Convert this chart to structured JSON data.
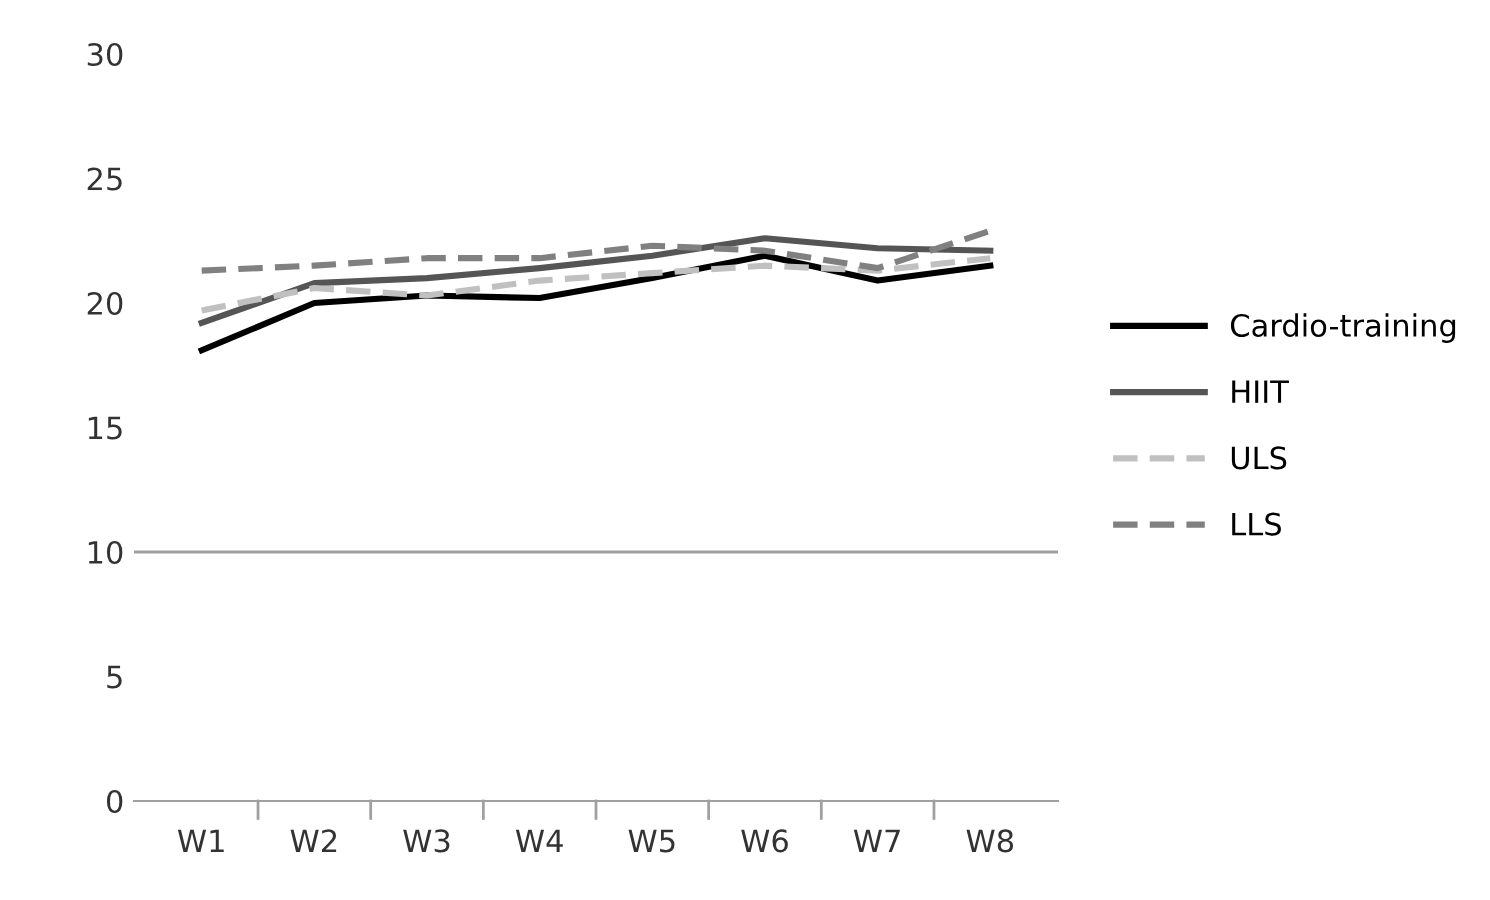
{
  "chart_data": {
    "type": "line",
    "categories": [
      "W1",
      "W2",
      "W3",
      "W4",
      "W5",
      "W6",
      "W7",
      "W8"
    ],
    "series": [
      {
        "name": "Cardio-training",
        "color": "#000000",
        "line_style": "solid",
        "values": [
          18.1,
          20.0,
          20.3,
          20.2,
          21.0,
          21.9,
          20.9,
          21.5
        ]
      },
      {
        "name": "HIIT",
        "color": "#555555",
        "line_style": "solid",
        "values": [
          19.2,
          20.8,
          21.0,
          21.4,
          21.9,
          22.6,
          22.2,
          22.1
        ]
      },
      {
        "name": "ULS",
        "color": "#c0c0c0",
        "line_style": "dashed",
        "values": [
          19.7,
          20.6,
          20.3,
          20.9,
          21.2,
          21.5,
          21.3,
          21.8
        ]
      },
      {
        "name": "LLS",
        "color": "#808080",
        "line_style": "dashed",
        "values": [
          21.3,
          21.5,
          21.8,
          21.8,
          22.3,
          22.1,
          21.4,
          22.9
        ]
      }
    ],
    "ylim": [
      0,
      30
    ],
    "yticks": [
      0,
      5,
      10,
      15,
      20,
      25,
      30
    ],
    "ref_lines": [
      {
        "axis": "y",
        "value": 10,
        "color": "#a0a0a0"
      }
    ],
    "legend": "right",
    "marker": "none"
  }
}
